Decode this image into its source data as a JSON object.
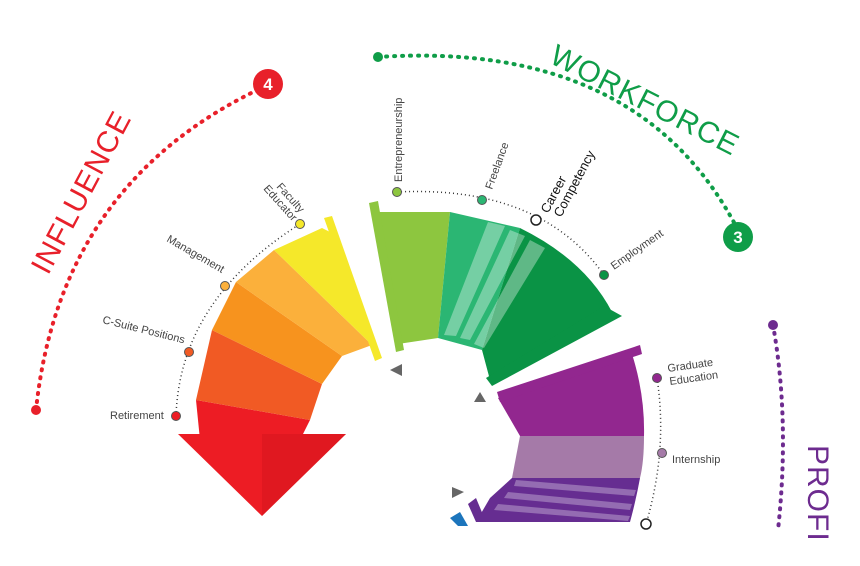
{
  "sections": {
    "influence": {
      "title": "INFLUENCE",
      "number": "4",
      "color": "#e8202a"
    },
    "workforce": {
      "title": "WORKFORCE",
      "number": "3",
      "color": "#0f9d48"
    },
    "proficiency": {
      "title": "PROFI",
      "color": "#6d2b8f"
    }
  },
  "influence_labels": {
    "retirement": "Retirement",
    "csuite": "C-Suite Positions",
    "management": "Management",
    "faculty_line1": "Faculty",
    "faculty_line2": "Educator"
  },
  "workforce_labels": {
    "entrepreneurship": "Entrepreneurship",
    "freelance": "Freelance",
    "career_line1": "Career",
    "career_line2": "Competency",
    "employment": "Employment"
  },
  "proficiency_labels": {
    "graduate_line1": "Graduate",
    "graduate_line2": "Education",
    "internship": "Internship"
  },
  "colors": {
    "red": "#ed1c24",
    "red_orange": "#f15a24",
    "orange": "#f7931e",
    "light_orange": "#fbb03b",
    "yellow": "#f5e82a",
    "lime": "#8dc63f",
    "green": "#2bb673",
    "dark_green": "#0a9345",
    "purple": "#92278f",
    "mauve": "#a57aa8",
    "violet": "#662d91",
    "blue": "#1c75bc"
  }
}
